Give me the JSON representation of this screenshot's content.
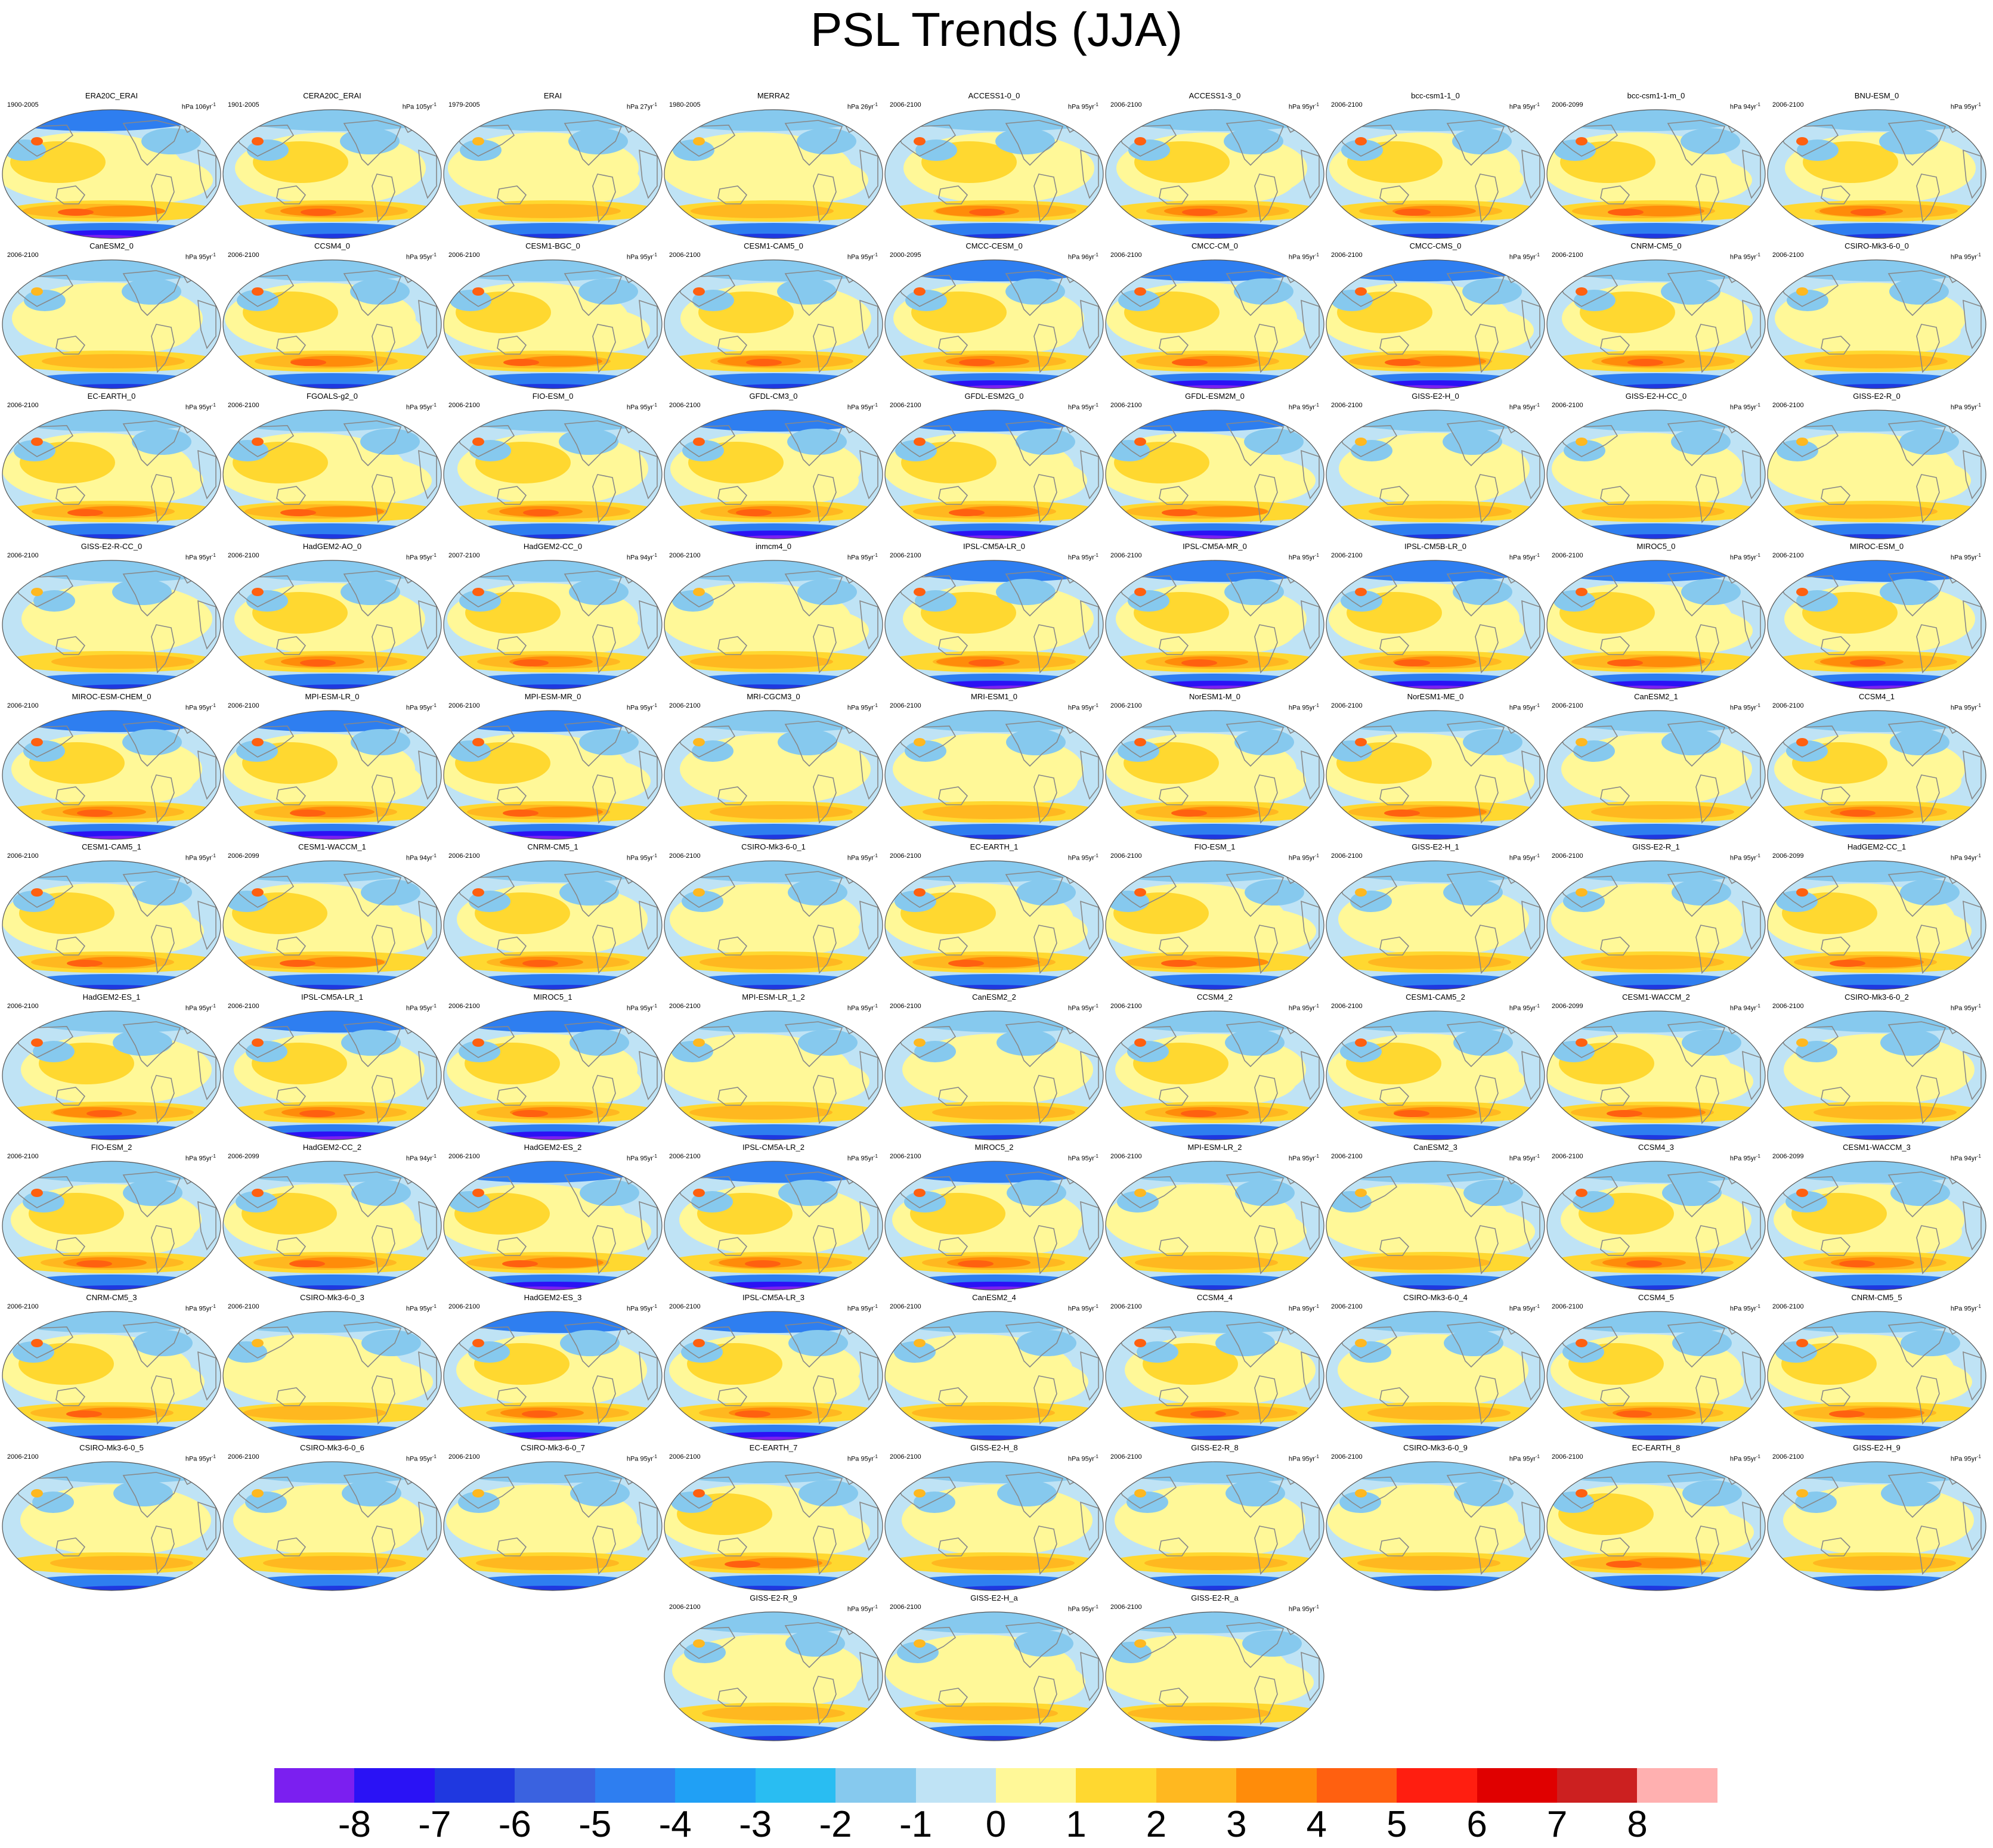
{
  "title": "PSL Trends (JJA)",
  "panels": [
    {
      "name": "ERA20C_ERAI",
      "period": "1900-2005",
      "unit": "hPa 106yr",
      "pattern": 1
    },
    {
      "name": "CERA20C_ERAI",
      "period": "1901-2005",
      "unit": "hPa 105yr",
      "pattern": 0
    },
    {
      "name": "ERAI",
      "period": "1979-2005",
      "unit": "hPa 27yr",
      "pattern": 2
    },
    {
      "name": "MERRA2",
      "period": "1980-2005",
      "unit": "hPa 26yr",
      "pattern": 2
    },
    {
      "name": "ACCESS1-0_0",
      "period": "2006-2100",
      "unit": "hPa 95yr",
      "pattern": 0
    },
    {
      "name": "ACCESS1-3_0",
      "period": "2006-2100",
      "unit": "hPa 95yr",
      "pattern": 0
    },
    {
      "name": "bcc-csm1-1_0",
      "period": "2006-2100",
      "unit": "hPa 95yr",
      "pattern": 0
    },
    {
      "name": "bcc-csm1-1-m_0",
      "period": "2006-2099",
      "unit": "hPa 94yr",
      "pattern": 0
    },
    {
      "name": "BNU-ESM_0",
      "period": "2006-2100",
      "unit": "hPa 95yr",
      "pattern": 0
    },
    {
      "name": "CanESM2_0",
      "period": "2006-2100",
      "unit": "hPa 95yr",
      "pattern": 2
    },
    {
      "name": "CCSM4_0",
      "period": "2006-2100",
      "unit": "hPa 95yr",
      "pattern": 0
    },
    {
      "name": "CESM1-BGC_0",
      "period": "2006-2100",
      "unit": "hPa 95yr",
      "pattern": 0
    },
    {
      "name": "CESM1-CAM5_0",
      "period": "2006-2100",
      "unit": "hPa 95yr",
      "pattern": 0
    },
    {
      "name": "CMCC-CESM_0",
      "period": "2000-2095",
      "unit": "hPa 96yr",
      "pattern": 1
    },
    {
      "name": "CMCC-CM_0",
      "period": "2006-2100",
      "unit": "hPa 95yr",
      "pattern": 1
    },
    {
      "name": "CMCC-CMS_0",
      "period": "2006-2100",
      "unit": "hPa 95yr",
      "pattern": 1
    },
    {
      "name": "CNRM-CM5_0",
      "period": "2006-2100",
      "unit": "hPa 95yr",
      "pattern": 0
    },
    {
      "name": "CSIRO-Mk3-6-0_0",
      "period": "2006-2100",
      "unit": "hPa 95yr",
      "pattern": 2
    },
    {
      "name": "EC-EARTH_0",
      "period": "2006-2100",
      "unit": "hPa 95yr",
      "pattern": 0
    },
    {
      "name": "FGOALS-g2_0",
      "period": "2006-2100",
      "unit": "hPa 95yr",
      "pattern": 0
    },
    {
      "name": "FIO-ESM_0",
      "period": "2006-2100",
      "unit": "hPa 95yr",
      "pattern": 0
    },
    {
      "name": "GFDL-CM3_0",
      "period": "2006-2100",
      "unit": "hPa 95yr",
      "pattern": 1
    },
    {
      "name": "GFDL-ESM2G_0",
      "period": "2006-2100",
      "unit": "hPa 95yr",
      "pattern": 1
    },
    {
      "name": "GFDL-ESM2M_0",
      "period": "2006-2100",
      "unit": "hPa 95yr",
      "pattern": 1
    },
    {
      "name": "GISS-E2-H_0",
      "period": "2006-2100",
      "unit": "hPa 95yr",
      "pattern": 2
    },
    {
      "name": "GISS-E2-H-CC_0",
      "period": "2006-2100",
      "unit": "hPa 95yr",
      "pattern": 2
    },
    {
      "name": "GISS-E2-R_0",
      "period": "2006-2100",
      "unit": "hPa 95yr",
      "pattern": 2
    },
    {
      "name": "GISS-E2-R-CC_0",
      "period": "2006-2100",
      "unit": "hPa 95yr",
      "pattern": 2
    },
    {
      "name": "HadGEM2-AO_0",
      "period": "2006-2100",
      "unit": "hPa 95yr",
      "pattern": 0
    },
    {
      "name": "HadGEM2-CC_0",
      "period": "2007-2100",
      "unit": "hPa 94yr",
      "pattern": 0
    },
    {
      "name": "inmcm4_0",
      "period": "2006-2100",
      "unit": "hPa 95yr",
      "pattern": 2
    },
    {
      "name": "IPSL-CM5A-LR_0",
      "period": "2006-2100",
      "unit": "hPa 95yr",
      "pattern": 1
    },
    {
      "name": "IPSL-CM5A-MR_0",
      "period": "2006-2100",
      "unit": "hPa 95yr",
      "pattern": 1
    },
    {
      "name": "IPSL-CM5B-LR_0",
      "period": "2006-2100",
      "unit": "hPa 95yr",
      "pattern": 1
    },
    {
      "name": "MIROC5_0",
      "period": "2006-2100",
      "unit": "hPa 95yr",
      "pattern": 1
    },
    {
      "name": "MIROC-ESM_0",
      "period": "2006-2100",
      "unit": "hPa 95yr",
      "pattern": 1
    },
    {
      "name": "MIROC-ESM-CHEM_0",
      "period": "2006-2100",
      "unit": "hPa 95yr",
      "pattern": 1
    },
    {
      "name": "MPI-ESM-LR_0",
      "period": "2006-2100",
      "unit": "hPa 95yr",
      "pattern": 1
    },
    {
      "name": "MPI-ESM-MR_0",
      "period": "2006-2100",
      "unit": "hPa 95yr",
      "pattern": 1
    },
    {
      "name": "MRI-CGCM3_0",
      "period": "2006-2100",
      "unit": "hPa 95yr",
      "pattern": 2
    },
    {
      "name": "MRI-ESM1_0",
      "period": "2006-2100",
      "unit": "hPa 95yr",
      "pattern": 2
    },
    {
      "name": "NorESM1-M_0",
      "period": "2006-2100",
      "unit": "hPa 95yr",
      "pattern": 0
    },
    {
      "name": "NorESM1-ME_0",
      "period": "2006-2100",
      "unit": "hPa 95yr",
      "pattern": 0
    },
    {
      "name": "CanESM2_1",
      "period": "2006-2100",
      "unit": "hPa 95yr",
      "pattern": 2
    },
    {
      "name": "CCSM4_1",
      "period": "2006-2100",
      "unit": "hPa 95yr",
      "pattern": 0
    },
    {
      "name": "CESM1-CAM5_1",
      "period": "2006-2100",
      "unit": "hPa 95yr",
      "pattern": 0
    },
    {
      "name": "CESM1-WACCM_1",
      "period": "2006-2099",
      "unit": "hPa 94yr",
      "pattern": 0
    },
    {
      "name": "CNRM-CM5_1",
      "period": "2006-2100",
      "unit": "hPa 95yr",
      "pattern": 0
    },
    {
      "name": "CSIRO-Mk3-6-0_1",
      "period": "2006-2100",
      "unit": "hPa 95yr",
      "pattern": 2
    },
    {
      "name": "EC-EARTH_1",
      "period": "2006-2100",
      "unit": "hPa 95yr",
      "pattern": 0
    },
    {
      "name": "FIO-ESM_1",
      "period": "2006-2100",
      "unit": "hPa 95yr",
      "pattern": 0
    },
    {
      "name": "GISS-E2-H_1",
      "period": "2006-2100",
      "unit": "hPa 95yr",
      "pattern": 2
    },
    {
      "name": "GISS-E2-R_1",
      "period": "2006-2100",
      "unit": "hPa 95yr",
      "pattern": 2
    },
    {
      "name": "HadGEM2-CC_1",
      "period": "2006-2099",
      "unit": "hPa 94yr",
      "pattern": 0
    },
    {
      "name": "HadGEM2-ES_1",
      "period": "2006-2100",
      "unit": "hPa 95yr",
      "pattern": 0
    },
    {
      "name": "IPSL-CM5A-LR_1",
      "period": "2006-2100",
      "unit": "hPa 95yr",
      "pattern": 1
    },
    {
      "name": "MIROC5_1",
      "period": "2006-2100",
      "unit": "hPa 95yr",
      "pattern": 1
    },
    {
      "name": "MPI-ESM-LR_1_2",
      "period": "2006-2100",
      "unit": "hPa 95yr",
      "pattern": 2
    },
    {
      "name": "CanESM2_2",
      "period": "2006-2100",
      "unit": "hPa 95yr",
      "pattern": 2
    },
    {
      "name": "CCSM4_2",
      "period": "2006-2100",
      "unit": "hPa 95yr",
      "pattern": 0
    },
    {
      "name": "CESM1-CAM5_2",
      "period": "2006-2100",
      "unit": "hPa 95yr",
      "pattern": 0
    },
    {
      "name": "CESM1-WACCM_2",
      "period": "2006-2099",
      "unit": "hPa 94yr",
      "pattern": 0
    },
    {
      "name": "CSIRO-Mk3-6-0_2",
      "period": "2006-2100",
      "unit": "hPa 95yr",
      "pattern": 2
    },
    {
      "name": "FIO-ESM_2",
      "period": "2006-2100",
      "unit": "hPa 95yr",
      "pattern": 0
    },
    {
      "name": "HadGEM2-CC_2",
      "period": "2006-2099",
      "unit": "hPa 94yr",
      "pattern": 0
    },
    {
      "name": "HadGEM2-ES_2",
      "period": "2006-2100",
      "unit": "hPa 95yr",
      "pattern": 1
    },
    {
      "name": "IPSL-CM5A-LR_2",
      "period": "2006-2100",
      "unit": "hPa 95yr",
      "pattern": 1
    },
    {
      "name": "MIROC5_2",
      "period": "2006-2100",
      "unit": "hPa 95yr",
      "pattern": 1
    },
    {
      "name": "MPI-ESM-LR_2",
      "period": "2006-2100",
      "unit": "hPa 95yr",
      "pattern": 2
    },
    {
      "name": "CanESM2_3",
      "period": "2006-2100",
      "unit": "hPa 95yr",
      "pattern": 2
    },
    {
      "name": "CCSM4_3",
      "period": "2006-2100",
      "unit": "hPa 95yr",
      "pattern": 0
    },
    {
      "name": "CESM1-WACCM_3",
      "period": "2006-2099",
      "unit": "hPa 94yr",
      "pattern": 0
    },
    {
      "name": "CNRM-CM5_3",
      "period": "2006-2100",
      "unit": "hPa 95yr",
      "pattern": 0
    },
    {
      "name": "CSIRO-Mk3-6-0_3",
      "period": "2006-2100",
      "unit": "hPa 95yr",
      "pattern": 2
    },
    {
      "name": "HadGEM2-ES_3",
      "period": "2006-2100",
      "unit": "hPa 95yr",
      "pattern": 1
    },
    {
      "name": "IPSL-CM5A-LR_3",
      "period": "2006-2100",
      "unit": "hPa 95yr",
      "pattern": 1
    },
    {
      "name": "CanESM2_4",
      "period": "2006-2100",
      "unit": "hPa 95yr",
      "pattern": 2
    },
    {
      "name": "CCSM4_4",
      "period": "2006-2100",
      "unit": "hPa 95yr",
      "pattern": 0
    },
    {
      "name": "CSIRO-Mk3-6-0_4",
      "period": "2006-2100",
      "unit": "hPa 95yr",
      "pattern": 2
    },
    {
      "name": "CCSM4_5",
      "period": "2006-2100",
      "unit": "hPa 95yr",
      "pattern": 0
    },
    {
      "name": "CNRM-CM5_5",
      "period": "2006-2100",
      "unit": "hPa 95yr",
      "pattern": 0
    },
    {
      "name": "CSIRO-Mk3-6-0_5",
      "period": "2006-2100",
      "unit": "hPa 95yr",
      "pattern": 2
    },
    {
      "name": "CSIRO-Mk3-6-0_6",
      "period": "2006-2100",
      "unit": "hPa 95yr",
      "pattern": 2
    },
    {
      "name": "CSIRO-Mk3-6-0_7",
      "period": "2006-2100",
      "unit": "hPa 95yr",
      "pattern": 2
    },
    {
      "name": "EC-EARTH_7",
      "period": "2006-2100",
      "unit": "hPa 95yr",
      "pattern": 0
    },
    {
      "name": "GISS-E2-H_8",
      "period": "2006-2100",
      "unit": "hPa 95yr",
      "pattern": 2
    },
    {
      "name": "GISS-E2-R_8",
      "period": "2006-2100",
      "unit": "hPa 95yr",
      "pattern": 2
    },
    {
      "name": "CSIRO-Mk3-6-0_9",
      "period": "2006-2100",
      "unit": "hPa 95yr",
      "pattern": 2
    },
    {
      "name": "EC-EARTH_8",
      "period": "2006-2100",
      "unit": "hPa 95yr",
      "pattern": 0
    },
    {
      "name": "GISS-E2-H_9",
      "period": "2006-2100",
      "unit": "hPa 95yr",
      "pattern": 2
    },
    {
      "name": "GISS-E2-R_9",
      "period": "2006-2100",
      "unit": "hPa 95yr",
      "pattern": 2
    },
    {
      "name": "GISS-E2-H_a",
      "period": "2006-2100",
      "unit": "hPa 95yr",
      "pattern": 2
    },
    {
      "name": "GISS-E2-R_a",
      "period": "2006-2100",
      "unit": "hPa 95yr",
      "pattern": 2
    }
  ],
  "colorbar": {
    "colors": [
      "#7b1ff0",
      "#2a12f5",
      "#1f38e0",
      "#3a62e0",
      "#2e7ef0",
      "#20a0f5",
      "#29bdf2",
      "#86c9ee",
      "#bfe3f5",
      "#fff898",
      "#ffd830",
      "#ffb820",
      "#ff8c0a",
      "#ff6010",
      "#ff1e10",
      "#e00000",
      "#cc2020",
      "#ffb0b0"
    ],
    "labels": [
      "-8",
      "-7",
      "-6",
      "-5",
      "-4",
      "-3",
      "-2",
      "-1",
      "0",
      "1",
      "2",
      "3",
      "4",
      "5",
      "6",
      "7",
      "8"
    ]
  },
  "map_colors": {
    "ocean_base": "#bfe3f5",
    "land_outline": "#888888",
    "pattern_styles": {
      "warm": [
        "#fff898",
        "#ffd830",
        "#ffb820",
        "#ff8c0a",
        "#ff6010",
        "#e00000"
      ],
      "cold": [
        "#86c9ee",
        "#2e7ef0",
        "#1f38e0",
        "#2a12f5",
        "#7b1ff0"
      ]
    }
  }
}
